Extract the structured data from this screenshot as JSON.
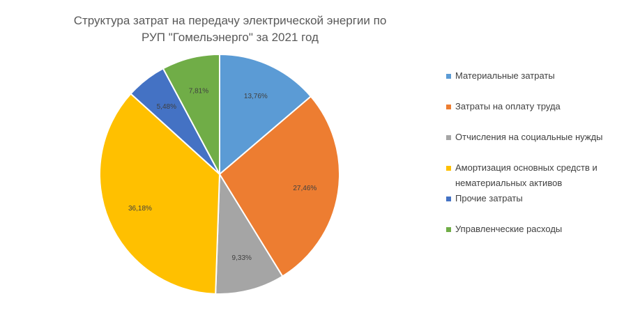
{
  "chart_data": {
    "type": "pie",
    "title_line1": "Структура затрат на передачу электрической энергии по",
    "title_line2": "РУП \"Гомельэнерго\" за 2021 год",
    "legend_position": "right",
    "slices": [
      {
        "name": "Материальные затраты",
        "value": 13.76,
        "label": "13,76%",
        "color": "#5B9BD5"
      },
      {
        "name": "Затраты на оплату труда",
        "value": 27.46,
        "label": "27,46%",
        "color": "#ED7D31"
      },
      {
        "name": "Отчисления на социальные нужды",
        "value": 9.33,
        "label": "9,33%",
        "color": "#A5A5A5"
      },
      {
        "name": "Амортизация основных средств и нематериальных активов",
        "value": 36.18,
        "label": "36,18%",
        "color": "#FFC000"
      },
      {
        "name": "Прочие затраты",
        "value": 5.48,
        "label": "5,48%",
        "color": "#4472C4"
      },
      {
        "name": "Управленческие расходы",
        "value": 7.81,
        "label": "7,81%",
        "color": "#70AD47"
      }
    ],
    "legend_lines": [
      [
        "Материальные затраты"
      ],
      [
        "Затраты на оплату труда"
      ],
      [
        "Отчисления на социальные нужды"
      ],
      [
        "Амортизация основных средств и",
        "нематериальных активов"
      ],
      [
        "Прочие затраты"
      ],
      [
        "Управленческие расходы"
      ]
    ]
  }
}
